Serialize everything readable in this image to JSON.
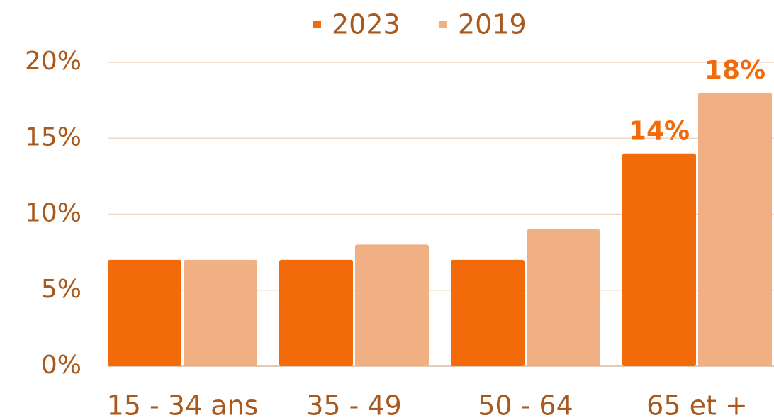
{
  "chart_data": {
    "type": "bar",
    "categories": [
      "15 - 34 ans",
      "35 - 49",
      "50 - 64",
      "65 et +"
    ],
    "series": [
      {
        "name": "2023",
        "color": "#f36a0a",
        "values": [
          7,
          7,
          7,
          14
        ],
        "value_labels": [
          null,
          null,
          null,
          "14%"
        ]
      },
      {
        "name": "2019",
        "color": "#f0b083",
        "values": [
          7,
          8,
          9,
          18
        ],
        "value_labels": [
          null,
          null,
          null,
          "18%"
        ]
      }
    ],
    "ylim": [
      0,
      20
    ],
    "yticks": [
      {
        "value": 0,
        "label": "0%"
      },
      {
        "value": 5,
        "label": "5%"
      },
      {
        "value": 10,
        "label": "10%"
      },
      {
        "value": 15,
        "label": "15%"
      },
      {
        "value": 20,
        "label": "20%"
      }
    ],
    "grid": true,
    "legend": "top"
  }
}
